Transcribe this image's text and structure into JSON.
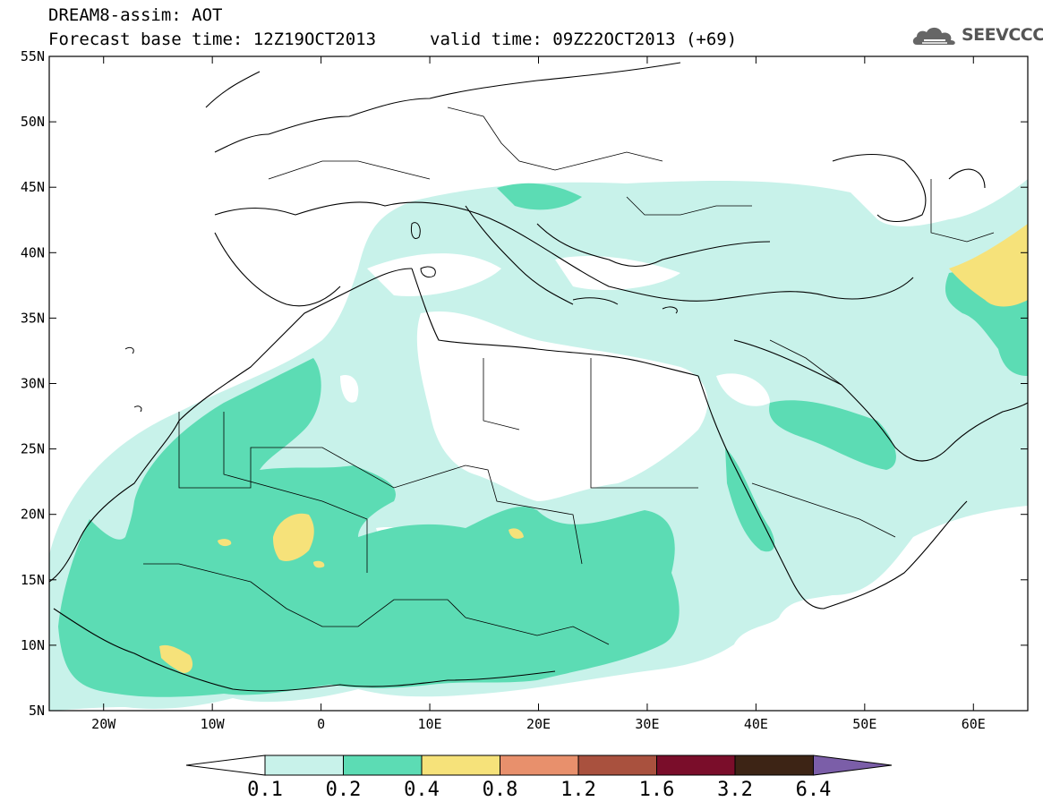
{
  "title": {
    "line1": "DREAM8-assim: AOT",
    "line2": "Forecast base time: 12Z19OCT2013",
    "valid": "valid time: 09Z22OCT2013 (+69)"
  },
  "logo": {
    "text": "SEEVCCC",
    "icon": "cloud-icon"
  },
  "map": {
    "lon_range": [
      -25,
      65
    ],
    "lat_range": [
      5,
      55
    ],
    "lat_ticks": [
      "55N",
      "50N",
      "45N",
      "40N",
      "35N",
      "30N",
      "25N",
      "20N",
      "15N",
      "10N",
      "5N"
    ],
    "lon_ticks": [
      "20W",
      "10W",
      "0",
      "10E",
      "20E",
      "30E",
      "40E",
      "50E",
      "60E"
    ],
    "background": "#ffffff",
    "coastline_color": "#000000"
  },
  "colorbar": {
    "labels": [
      "0.1",
      "0.2",
      "0.4",
      "0.8",
      "1.2",
      "1.6",
      "3.2",
      "6.4"
    ],
    "colors": [
      "#ffffff",
      "#c8f2ea",
      "#5cdcb4",
      "#f6e27a",
      "#e8906c",
      "#a9513e",
      "#7a0d2a",
      "#3d2415",
      "#7b5ea8"
    ]
  }
}
